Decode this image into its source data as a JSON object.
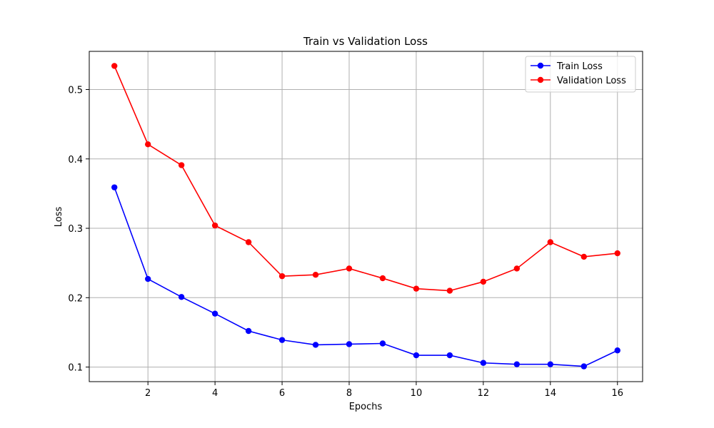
{
  "chart_data": {
    "type": "line",
    "title": "Train vs Validation Loss",
    "xlabel": "Epochs",
    "ylabel": "Loss",
    "x": [
      1,
      2,
      3,
      4,
      5,
      6,
      7,
      8,
      9,
      10,
      11,
      12,
      13,
      14,
      15,
      16
    ],
    "xlim": [
      0.25,
      16.75
    ],
    "ylim": [
      0.079,
      0.555
    ],
    "xticks": [
      2,
      4,
      6,
      8,
      10,
      12,
      14,
      16
    ],
    "yticks": [
      0.1,
      0.2,
      0.3,
      0.4,
      0.5
    ],
    "xtick_labels": [
      "2",
      "4",
      "6",
      "8",
      "10",
      "12",
      "14",
      "16"
    ],
    "ytick_labels": [
      "0.1",
      "0.2",
      "0.3",
      "0.4",
      "0.5"
    ],
    "grid": true,
    "legend_position": "top-right",
    "series": [
      {
        "name": "Train Loss",
        "color": "#0000ff",
        "marker": "circle",
        "values": [
          0.359,
          0.227,
          0.201,
          0.177,
          0.152,
          0.139,
          0.132,
          0.133,
          0.134,
          0.117,
          0.117,
          0.106,
          0.104,
          0.104,
          0.101,
          0.124
        ]
      },
      {
        "name": "Validation Loss",
        "color": "#ff0000",
        "marker": "circle",
        "values": [
          0.534,
          0.421,
          0.391,
          0.304,
          0.28,
          0.231,
          0.233,
          0.242,
          0.228,
          0.213,
          0.21,
          0.223,
          0.242,
          0.28,
          0.259,
          0.264
        ]
      }
    ]
  }
}
